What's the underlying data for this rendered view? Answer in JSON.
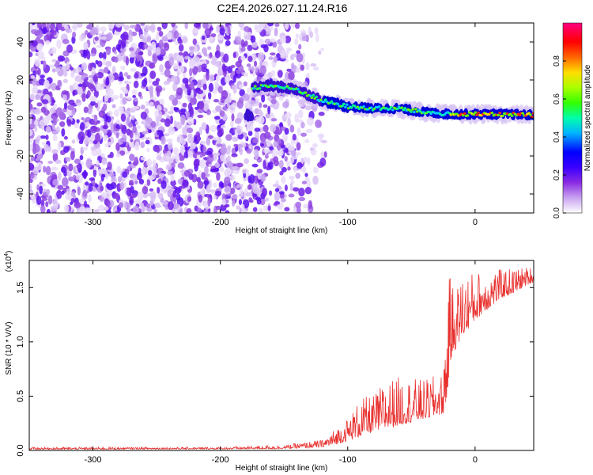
{
  "title": "C2E4.2026.027.11.24.R16",
  "chart_data": [
    {
      "type": "heatmap",
      "xlabel": "Height of straight line (km)",
      "ylabel": "Frequency (Hz)",
      "xlim": [
        -350,
        46
      ],
      "ylim": [
        -50,
        50
      ],
      "xticks": [
        -300,
        -200,
        -100,
        0
      ],
      "yticks": [
        -40,
        -20,
        0,
        20,
        40
      ],
      "colorbar": {
        "label": "Normalized spectral amplitude",
        "range": [
          0,
          1
        ],
        "ticks": [
          "0.0",
          "0.2",
          "0.4",
          "0.6",
          "0.8"
        ],
        "colors": [
          "#ffffff",
          "#c9a2f0",
          "#8a2be2",
          "#5a00ff",
          "#0000ff",
          "#00ccff",
          "#00ff66",
          "#66ff00",
          "#ffff00",
          "#ff8800",
          "#ff0000",
          "#ff00aa"
        ]
      },
      "description_points": {
        "ridge_x": [
          -175,
          -160,
          -140,
          -120,
          -100,
          -80,
          -60,
          -40,
          -20,
          0,
          20,
          46
        ],
        "ridge_freq": [
          16,
          17,
          15,
          9,
          6,
          5,
          5,
          3,
          2,
          2,
          2,
          1.5
        ],
        "noise_extent_x": [
          -350,
          -125
        ]
      }
    },
    {
      "type": "line",
      "xlabel": "Height of straight line (km)",
      "ylabel": "SNR (10 * V/V)",
      "exponent_label": "(x10",
      "exponent_sup": "4",
      "exponent_close": ")",
      "xlim": [
        -350,
        46
      ],
      "ylim": [
        0,
        17500
      ],
      "xticks": [
        -300,
        -200,
        -100,
        0
      ],
      "yticks": [
        0,
        5000,
        10000,
        15000
      ],
      "ytick_labels": [
        "0.0",
        "0.5",
        "1.0",
        "1.5"
      ],
      "color": "#e8302e",
      "series": [
        {
          "x": [
            -350,
            -300,
            -250,
            -200,
            -150,
            -120,
            -110,
            -100,
            -90,
            -80,
            -70,
            -60,
            -50,
            -40,
            -30,
            -25,
            -22,
            -20,
            -15,
            -10,
            0,
            10,
            20,
            30,
            40,
            46
          ],
          "y_base": [
            100,
            100,
            120,
            120,
            150,
            300,
            500,
            900,
            1300,
            1700,
            2000,
            2300,
            2600,
            2900,
            3200,
            3400,
            4000,
            8000,
            9500,
            10500,
            12000,
            13000,
            14000,
            14500,
            15200,
            15500
          ],
          "y_peak": [
            300,
            300,
            300,
            300,
            500,
            1000,
            2000,
            3000,
            4800,
            5100,
            6500,
            6800,
            6700,
            6500,
            7000,
            7000,
            16200,
            16000,
            15000,
            16400,
            16500,
            16700,
            16700,
            16800,
            16900,
            17000
          ]
        }
      ]
    }
  ]
}
